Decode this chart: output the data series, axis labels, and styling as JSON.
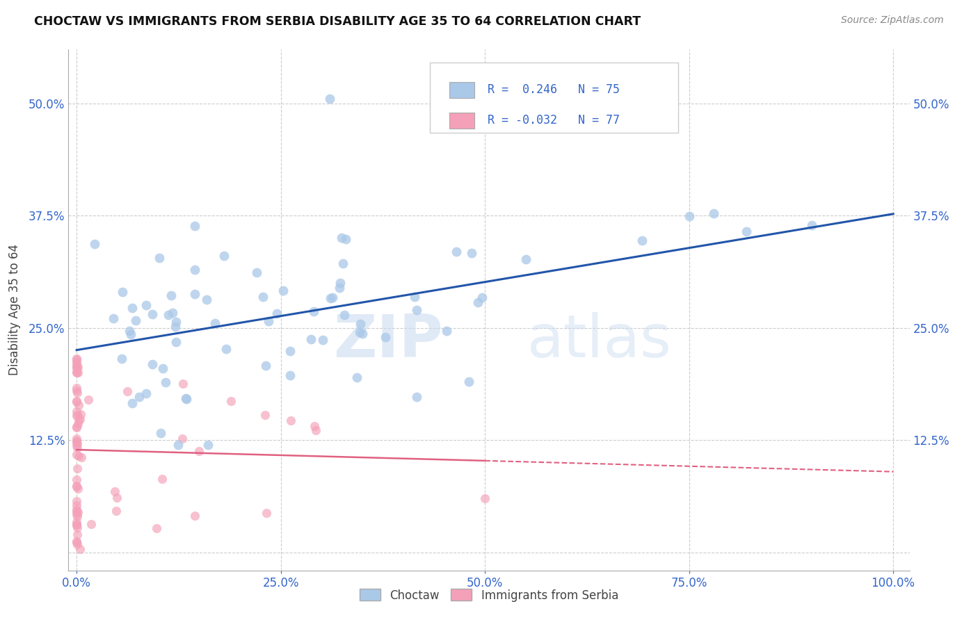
{
  "title": "CHOCTAW VS IMMIGRANTS FROM SERBIA DISABILITY AGE 35 TO 64 CORRELATION CHART",
  "source": "Source: ZipAtlas.com",
  "ylabel": "Disability Age 35 to 64",
  "legend_labels": [
    "Choctaw",
    "Immigrants from Serbia"
  ],
  "r_choctaw": 0.246,
  "n_choctaw": 75,
  "r_serbia": -0.032,
  "n_serbia": 77,
  "xlim": [
    -0.01,
    1.02
  ],
  "ylim": [
    -0.02,
    0.56
  ],
  "xticks": [
    0.0,
    0.25,
    0.5,
    0.75,
    1.0
  ],
  "xtick_labels": [
    "0.0%",
    "25.0%",
    "50.0%",
    "75.0%",
    "100.0%"
  ],
  "yticks": [
    0.0,
    0.125,
    0.25,
    0.375,
    0.5
  ],
  "ytick_labels": [
    "",
    "12.5%",
    "25.0%",
    "37.5%",
    "50.0%"
  ],
  "watermark_zip": "ZIP",
  "watermark_atlas": "atlas",
  "blue_color": "#aac8e8",
  "pink_color": "#f4a0b8",
  "line_blue": "#2255aa",
  "line_pink": "#e06080",
  "background": "#ffffff",
  "grid_color": "#cccccc",
  "legend_r_color": "#3366cc",
  "legend_n_color": "#3366cc"
}
